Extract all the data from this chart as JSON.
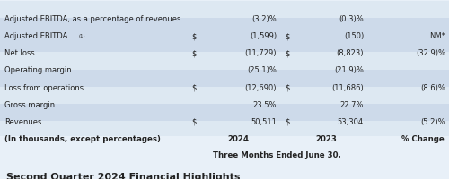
{
  "title": "Second Quarter 2024 Financial Highlights",
  "header_group": "Three Months Ended June 30,",
  "col_headers": [
    "(In thousands, except percentages)",
    "2024",
    "2023",
    "% Change"
  ],
  "rows": [
    {
      "label": "Revenues",
      "dollar_2024": true,
      "val_2024": "50,511",
      "dollar_2023": true,
      "val_2023": "53,304",
      "pct": "(5.2)%"
    },
    {
      "label": "Gross margin",
      "dollar_2024": false,
      "val_2024": "23.5%",
      "dollar_2023": false,
      "val_2023": "22.7%",
      "pct": ""
    },
    {
      "label": "Loss from operations",
      "dollar_2024": true,
      "val_2024": "(12,690)",
      "dollar_2023": true,
      "val_2023": "(11,686)",
      "pct": "(8.6)%"
    },
    {
      "label": "Operating margin",
      "dollar_2024": false,
      "val_2024": "(25.1)%",
      "dollar_2023": false,
      "val_2023": "(21.9)%",
      "pct": ""
    },
    {
      "label": "Net loss",
      "dollar_2024": true,
      "val_2024": "(11,729)",
      "dollar_2023": true,
      "val_2023": "(8,823)",
      "pct": "(32.9)%"
    },
    {
      "label": "Adjusted EBITDA",
      "dollar_2024": true,
      "val_2024": "(1,599)",
      "dollar_2023": true,
      "val_2023": "(150)",
      "pct": "NM*",
      "superscript": "(1)"
    },
    {
      "label": "Adjusted EBITDA, as a percentage of revenues",
      "dollar_2024": false,
      "val_2024": "(3.2)%",
      "dollar_2023": false,
      "val_2023": "(0.3)%",
      "pct": ""
    }
  ],
  "shaded_rows": [
    0,
    2,
    4,
    5
  ],
  "bg_color": "#e8f0f8",
  "title_bg": "#f0f4f8",
  "row_shaded_color": "#cddaea",
  "row_unshaded_color": "#dde8f2",
  "header_row_color": "#dde8f2",
  "text_color": "#222222",
  "line_color": "#8899aa",
  "title_fontsize": 8.0,
  "header_fontsize": 6.2,
  "cell_fontsize": 6.0
}
